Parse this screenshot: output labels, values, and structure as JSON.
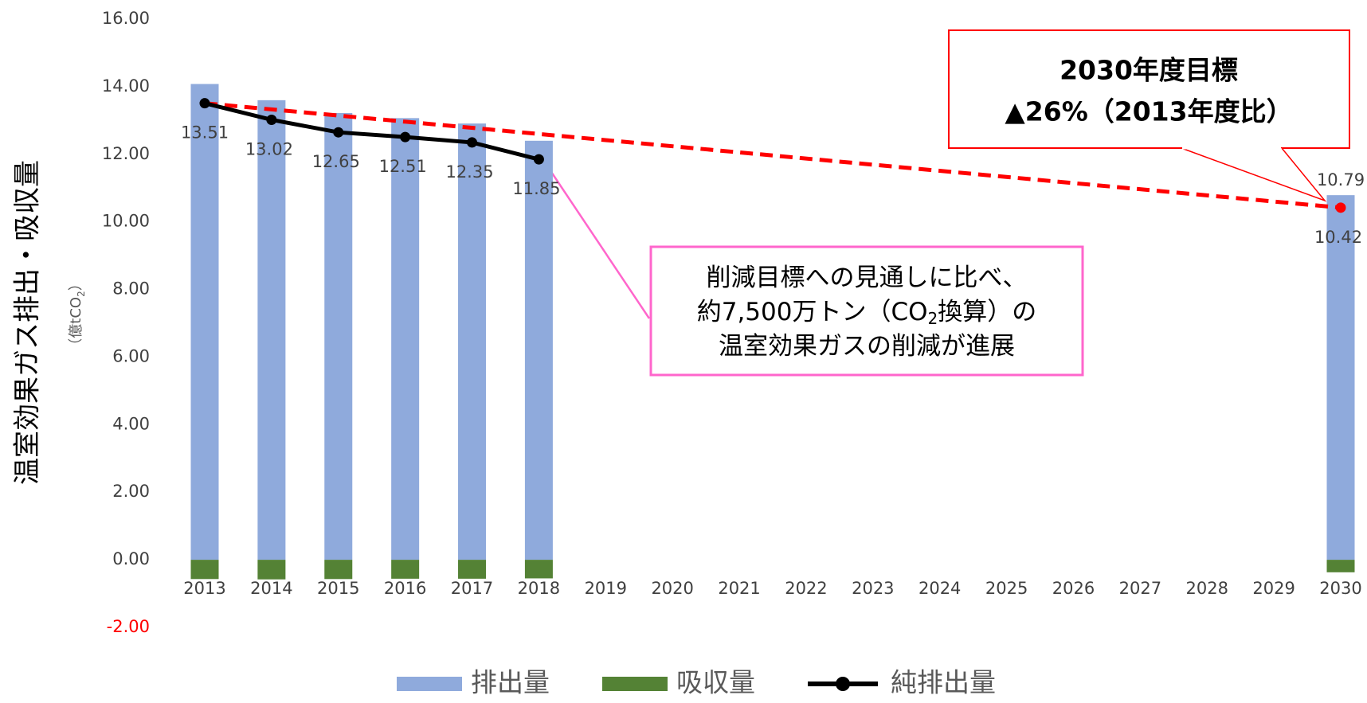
{
  "chart_data": {
    "type": "bar",
    "y_label": "温室効果ガス排出・吸収量",
    "y_unit": [
      "（億tCO",
      "2",
      "）"
    ],
    "categories": [
      "2013",
      "2014",
      "2015",
      "2016",
      "2017",
      "2018",
      "2019",
      "2020",
      "2021",
      "2022",
      "2023",
      "2024",
      "2025",
      "2026",
      "2027",
      "2028",
      "2029",
      "2030"
    ],
    "series": [
      {
        "name": "排出量",
        "type": "bar",
        "color": "#8faadc",
        "values": [
          14.08,
          13.6,
          13.22,
          13.07,
          12.91,
          12.4,
          null,
          null,
          null,
          null,
          null,
          null,
          null,
          null,
          null,
          null,
          null,
          10.79
        ],
        "value_labels": [
          null,
          null,
          null,
          null,
          null,
          null,
          null,
          null,
          null,
          null,
          null,
          null,
          null,
          null,
          null,
          null,
          null,
          "10.79"
        ]
      },
      {
        "name": "吸収量",
        "type": "bar",
        "color": "#548235",
        "values": [
          -0.57,
          -0.58,
          -0.57,
          -0.56,
          -0.56,
          -0.55,
          null,
          null,
          null,
          null,
          null,
          null,
          null,
          null,
          null,
          null,
          null,
          -0.37
        ]
      },
      {
        "name": "純排出量",
        "type": "line",
        "color": "#000000",
        "values": [
          13.51,
          13.02,
          12.65,
          12.51,
          12.35,
          11.85,
          null,
          null,
          null,
          null,
          null,
          null,
          null,
          null,
          null,
          null,
          null,
          10.42
        ],
        "labels": true
      }
    ],
    "target_line": {
      "color": "#ff0000",
      "x": [
        "2013",
        "2030"
      ],
      "values": [
        13.51,
        10.42
      ]
    },
    "ylim": [
      -2,
      16
    ],
    "yticks": [
      {
        "value": -2,
        "label": "-2.00",
        "color": "#ff0000"
      },
      {
        "value": 0,
        "label": "0.00"
      },
      {
        "value": 2,
        "label": "2.00"
      },
      {
        "value": 4,
        "label": "4.00"
      },
      {
        "value": 6,
        "label": "6.00"
      },
      {
        "value": 8,
        "label": "8.00"
      },
      {
        "value": 10,
        "label": "10.00"
      },
      {
        "value": 12,
        "label": "12.00"
      },
      {
        "value": 14,
        "label": "14.00"
      },
      {
        "value": 16,
        "label": "16.00"
      }
    ],
    "legend": "bottom",
    "annotations": [
      {
        "lines": [
          "2030年度目標",
          "▲26%（2013年度比）"
        ],
        "color": "#ff0000"
      },
      {
        "lines": [
          [
            "削減目標への見通しに比べ、"
          ],
          [
            "約7,500万トン（CO",
            "2",
            "換算）の"
          ],
          [
            "温室効果ガスの削減が進展"
          ]
        ],
        "color": "#ff66cc"
      }
    ]
  }
}
